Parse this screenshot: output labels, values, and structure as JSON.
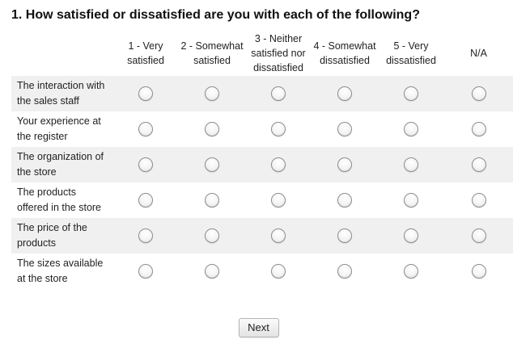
{
  "question": {
    "title": "1. How satisfied or dissatisfied are you with each of the following?"
  },
  "columns": [
    {
      "line1": "1 - Very",
      "line2": "satisfied",
      "line3": ""
    },
    {
      "line1": "2 - Somewhat",
      "line2": "satisfied",
      "line3": ""
    },
    {
      "line1": "3 - Neither",
      "line2": "satisfied nor",
      "line3": "dissatisfied"
    },
    {
      "line1": "4 - Somewhat",
      "line2": "dissatisfied",
      "line3": ""
    },
    {
      "line1": "5 - Very",
      "line2": "dissatisfied",
      "line3": ""
    },
    {
      "line1": "N/A",
      "line2": "",
      "line3": ""
    }
  ],
  "rows": [
    {
      "line1": "The interaction with",
      "line2": "the sales staff"
    },
    {
      "line1": "Your experience at",
      "line2": "the register"
    },
    {
      "line1": "The organization of",
      "line2": "the store"
    },
    {
      "line1": "The products",
      "line2": "offered in the store"
    },
    {
      "line1": "The price of the",
      "line2": "products"
    },
    {
      "line1": "The sizes available",
      "line2": "at the store"
    }
  ],
  "navigation": {
    "next_label": "Next"
  },
  "colors": {
    "shaded_row": "#f0f0f0",
    "text": "#222222"
  }
}
